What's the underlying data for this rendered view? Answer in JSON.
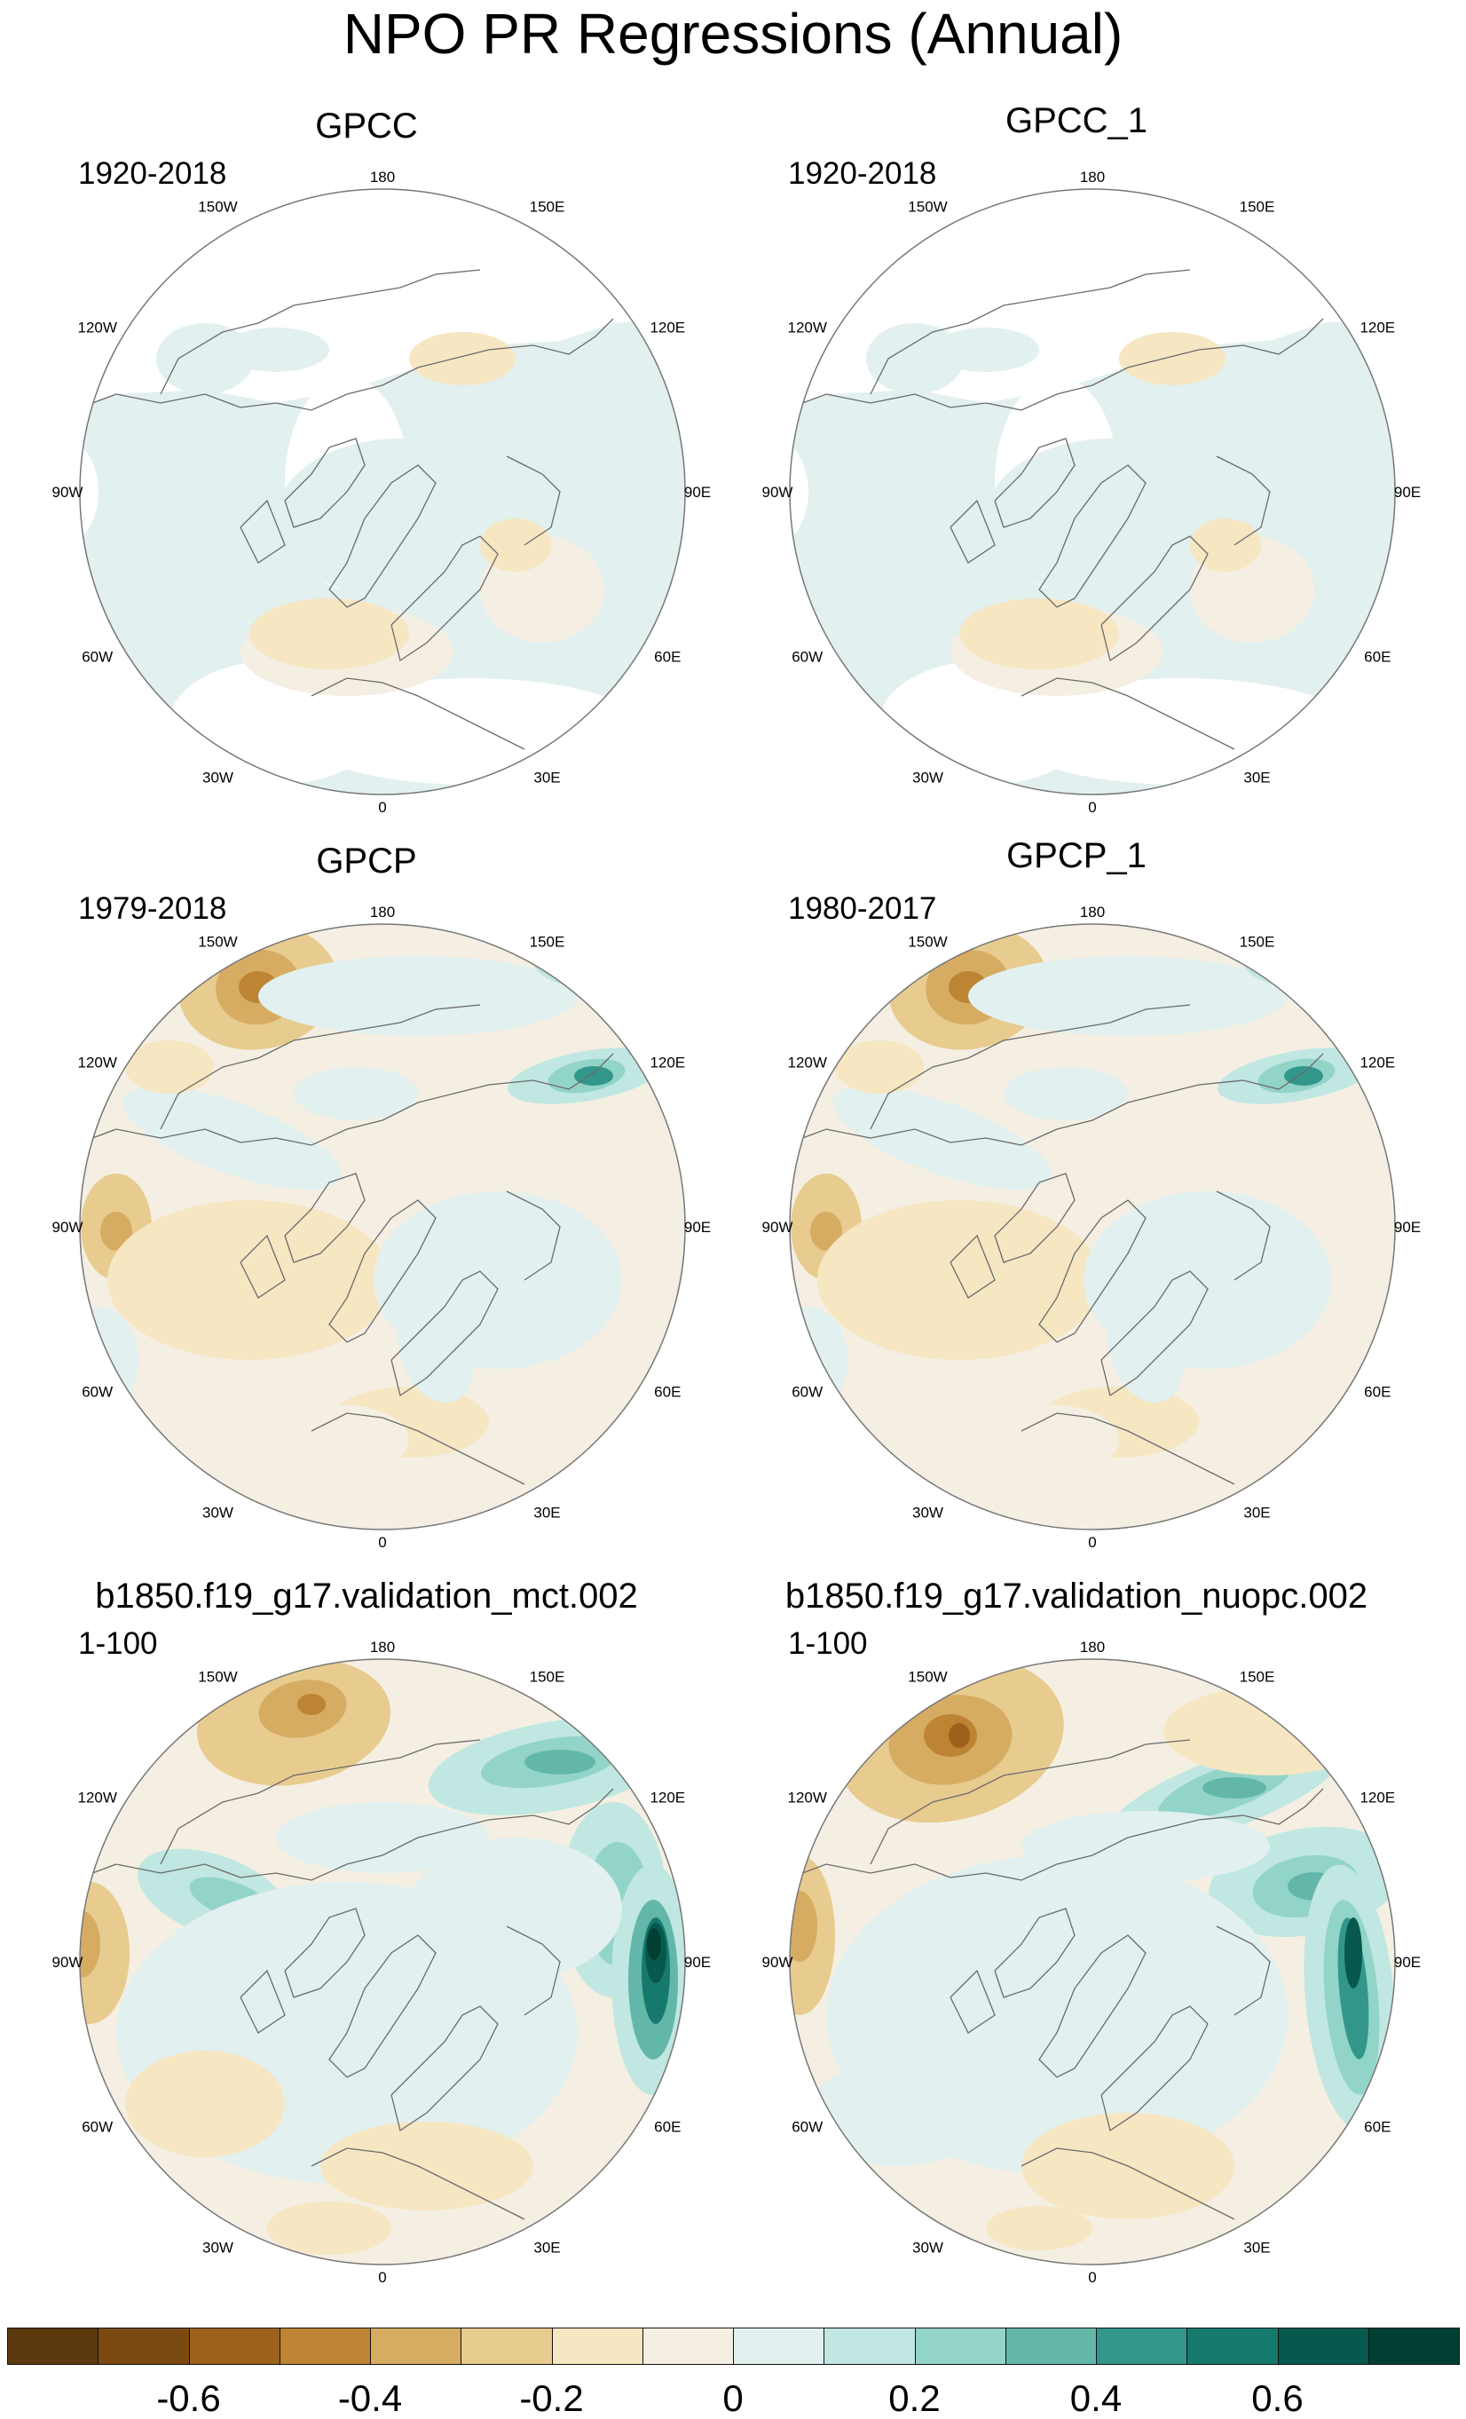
{
  "figure": {
    "title": "NPO PR Regressions (Annual)"
  },
  "panels": [
    {
      "title": "GPCC",
      "period": "1920-2018"
    },
    {
      "title": "GPCC_1",
      "period": "1920-2018"
    },
    {
      "title": "GPCP",
      "period": "1979-2018"
    },
    {
      "title": "GPCP_1",
      "period": "1980-2017"
    },
    {
      "title": "b1850.f19_g17.validation_mct.002",
      "period": "1-100"
    },
    {
      "title": "b1850.f19_g17.validation_nuopc.002",
      "period": "1-100"
    }
  ],
  "longitude_labels": [
    "180",
    "150E",
    "120E",
    "90E",
    "60E",
    "30E",
    "0",
    "30W",
    "60W",
    "90W",
    "120W",
    "150W"
  ],
  "colorbar": {
    "colors": [
      "#5c3a0d",
      "#7b4a12",
      "#9e611c",
      "#bd8433",
      "#d6ac63",
      "#e8cb8f",
      "#f6e6c2",
      "#f4efe2",
      "#e2f0ef",
      "#c0e7e1",
      "#93d4c8",
      "#62b7a9",
      "#33968a",
      "#157a6d",
      "#06594c",
      "#013f33"
    ],
    "tick_labels": [
      "-0.6",
      "-0.4",
      "-0.2",
      "0",
      "0.2",
      "0.4",
      "0.6"
    ]
  },
  "chart_data": {
    "type": "polar-stereographic-contour-maps",
    "title": "NPO PR Regressions (Annual)",
    "panel_layout": "3 rows x 2 columns",
    "projection": "north polar stereographic, 0 at bottom, 180 at top",
    "levels": [
      -0.7,
      -0.6,
      -0.5,
      -0.4,
      -0.3,
      -0.2,
      -0.1,
      0,
      0.1,
      0.2,
      0.3,
      0.4,
      0.5,
      0.6,
      0.7
    ],
    "colorbar_ticks": [
      -0.6,
      -0.4,
      -0.2,
      0,
      0.2,
      0.4,
      0.6
    ]
  }
}
